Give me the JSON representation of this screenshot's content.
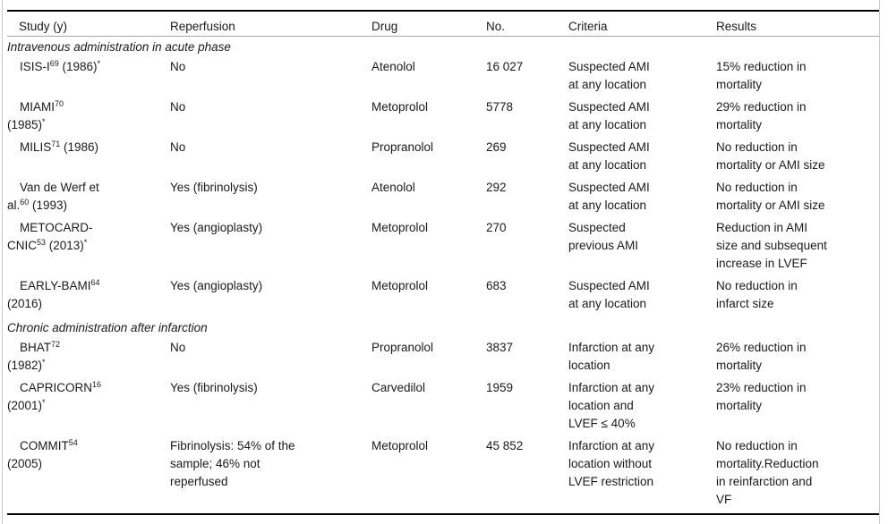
{
  "table": {
    "headers": [
      "Study (y)",
      "Reperfusion",
      "Drug",
      "No.",
      "Criteria",
      "Results"
    ],
    "sections": [
      {
        "title": "Intravenous administration in acute phase",
        "rows": [
          {
            "study": [
              {
                "t": "ISIS-I"
              },
              {
                "s": "69"
              },
              {
                "t": " (1986)"
              },
              {
                "s": "*"
              }
            ],
            "reperfusion": "No",
            "drug": "Atenolol",
            "no": "16 027",
            "criteria": "Suspected AMI\nat any location",
            "results": "15% reduction in\nmortality"
          },
          {
            "study": [
              {
                "t": "MIAMI"
              },
              {
                "s": "70"
              },
              {
                "b": 1
              },
              {
                "t": "(1985)"
              },
              {
                "s": "*"
              }
            ],
            "reperfusion": "No",
            "drug": "Metoprolol",
            "no": "5778",
            "criteria": "Suspected AMI\nat any location",
            "results": "29% reduction in\nmortality"
          },
          {
            "study": [
              {
                "t": "MILIS"
              },
              {
                "s": "71"
              },
              {
                "t": " (1986)"
              }
            ],
            "reperfusion": "No",
            "drug": "Propranolol",
            "no": "269",
            "criteria": "Suspected AMI\nat any location",
            "results": "No reduction in\nmortality or AMI size"
          },
          {
            "study": [
              {
                "t": "Van de Werf et"
              },
              {
                "b": 1
              },
              {
                "t": "al."
              },
              {
                "s": "60"
              },
              {
                "t": " (1993)"
              }
            ],
            "reperfusion": "Yes (fibrinolysis)",
            "drug": "Atenolol",
            "no": "292",
            "criteria": "Suspected AMI\nat any location",
            "results": "No reduction in\nmortality or AMI size"
          },
          {
            "study": [
              {
                "t": "METOCARD-"
              },
              {
                "b": 1
              },
              {
                "t": "CNIC"
              },
              {
                "s": "53"
              },
              {
                "t": " (2013)"
              },
              {
                "s": "*"
              }
            ],
            "reperfusion": "Yes (angioplasty)",
            "drug": "Metoprolol",
            "no": "270",
            "criteria": "Suspected\nprevious AMI",
            "results": "Reduction in AMI\nsize and subsequent\nincrease in LVEF"
          },
          {
            "study": [
              {
                "t": "EARLY-BAMI"
              },
              {
                "s": "64"
              },
              {
                "b": 1
              },
              {
                "t": "(2016)"
              }
            ],
            "reperfusion": "Yes (angioplasty)",
            "drug": "Metoprolol",
            "no": "683",
            "criteria": "Suspected AMI\nat any location",
            "results": "No reduction in\ninfarct size"
          }
        ]
      },
      {
        "title": "Chronic administration after infarction",
        "rows": [
          {
            "study": [
              {
                "t": "BHAT"
              },
              {
                "s": "72"
              },
              {
                "b": 1
              },
              {
                "t": "(1982)"
              },
              {
                "s": "*"
              }
            ],
            "reperfusion": "No",
            "drug": "Propranolol",
            "no": "3837",
            "criteria": "Infarction at any\nlocation",
            "results": "26% reduction in\nmortality"
          },
          {
            "study": [
              {
                "t": "CAPRICORN"
              },
              {
                "s": "16"
              },
              {
                "b": 1
              },
              {
                "t": "(2001)"
              },
              {
                "s": "*"
              }
            ],
            "reperfusion": "Yes (fibrinolysis)",
            "drug": "Carvedilol",
            "no": "1959",
            "criteria": "Infarction at any\nlocation and\nLVEF ≤ 40%",
            "results": "23% reduction in\nmortality"
          },
          {
            "study": [
              {
                "t": "COMMIT"
              },
              {
                "s": "54"
              },
              {
                "b": 1
              },
              {
                "t": "(2005)"
              }
            ],
            "reperfusion": "Fibrinolysis: 54% of the\nsample; 46% not\nreperfused",
            "drug": "Metoprolol",
            "no": "45 852",
            "criteria": "Infarction at any\nlocation without\nLVEF restriction",
            "results": "No reduction in\nmortality.Reduction\nin reinfarction and\nVF"
          }
        ]
      }
    ]
  }
}
